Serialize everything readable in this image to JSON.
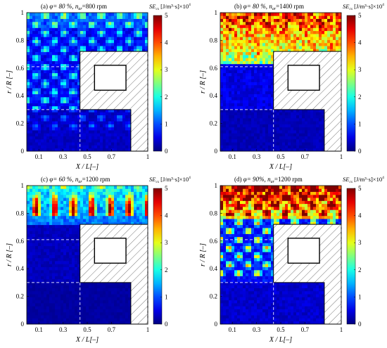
{
  "colorbar": {
    "ticks": [
      "0",
      "1",
      "2",
      "3",
      "4",
      "5"
    ],
    "vmin": 0,
    "vmax": 5,
    "colormap": "jet"
  },
  "chart_data": [
    {
      "type": "heatmap",
      "panel_label": "(a)",
      "title_phi": "φ= 80 %,",
      "title_n": "n",
      "title_n_sub": "ar",
      "title_rest": "=800 rpm",
      "colorbar_label": "SE",
      "colorbar_label_sub": "cs",
      "colorbar_unit": " [J/m³·s]×10",
      "colorbar_exp": "4",
      "xlabel": "X / L[–]",
      "ylabel": "r / R [–]",
      "xticks": [
        "0.1",
        "0.3",
        "0.5",
        "0.7",
        "1"
      ],
      "yticks": [
        "0",
        "0.2",
        "0.4",
        "0.6",
        "0.8",
        "1"
      ],
      "xlim": [
        0,
        1
      ],
      "ylim": [
        0,
        1
      ],
      "field": {
        "base": 0.6,
        "top": 0.6,
        "topStart": 0.9,
        "spot": 1.0,
        "rows": 9,
        "rowStart": 0.15,
        "spotTopOnly": false
      }
    },
    {
      "type": "heatmap",
      "panel_label": "(b)",
      "title_phi": "φ= 80 %,",
      "title_n": "n",
      "title_n_sub": "ar",
      "title_rest": "=1400 rpm",
      "colorbar_label": "SE",
      "colorbar_label_sub": "cs",
      "colorbar_unit": " [J/m³·s]×10",
      "colorbar_exp": "4",
      "xlabel": "X / L[–]",
      "ylabel": "r / R [–]",
      "xticks": [
        "0.1",
        "0.3",
        "0.5",
        "0.7",
        "1"
      ],
      "yticks": [
        "0",
        "0.2",
        "0.4",
        "0.6",
        "0.8",
        "1"
      ],
      "xlim": [
        0,
        1
      ],
      "ylim": [
        0,
        1
      ],
      "field": {
        "base": 0.5,
        "top": 3.6,
        "topStart": 0.62,
        "spot": 0.4,
        "rows": 3,
        "rowStart": 0.65,
        "spotTopOnly": true
      }
    },
    {
      "type": "heatmap",
      "panel_label": "(c)",
      "title_phi": "φ= 60 %,",
      "title_n": "n",
      "title_n_sub": "ar",
      "title_rest": "=1200 rpm",
      "colorbar_label": "SE",
      "colorbar_label_sub": "cs",
      "colorbar_unit": " [J/m³·s]×10",
      "colorbar_exp": "4",
      "xlabel": "X / L[–]",
      "ylabel": "r / R [–]",
      "xticks": [
        "0.1",
        "0.3",
        "0.5",
        "0.7",
        "1"
      ],
      "yticks": [
        "0",
        "0.2",
        "0.4",
        "0.6",
        "0.8",
        "1"
      ],
      "xlim": [
        0,
        1
      ],
      "ylim": [
        0,
        1
      ],
      "field": {
        "base": 0.3,
        "top": 1.6,
        "topStart": 0.72,
        "spot": 2.2,
        "rows": 2,
        "rowStart": 0.78,
        "spotTopOnly": true
      }
    },
    {
      "type": "heatmap",
      "panel_label": "(d)",
      "title_phi": "φ= 90%,",
      "title_n": "n",
      "title_n_sub": "ar",
      "title_rest": "=1200 rpm",
      "colorbar_label": "SE",
      "colorbar_label_sub": "cs",
      "colorbar_unit": " [J/m³·s]×10",
      "colorbar_exp": "4",
      "xlabel": "X / L[–]",
      "ylabel": "r / R [–]",
      "xticks": [
        "0.1",
        "0.3",
        "0.5",
        "0.7",
        "1"
      ],
      "yticks": [
        "0",
        "0.2",
        "0.4",
        "0.6",
        "0.8",
        "1"
      ],
      "xlim": [
        0,
        1
      ],
      "ylim": [
        0,
        1
      ],
      "field": {
        "base": 0.7,
        "top": 3.8,
        "topStart": 0.75,
        "spot": 1.8,
        "rows": 9,
        "rowStart": 0.35,
        "spotTopOnly": false
      }
    }
  ]
}
